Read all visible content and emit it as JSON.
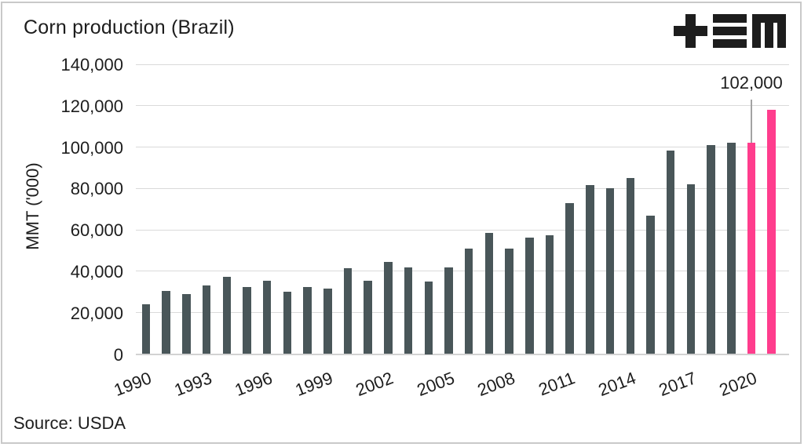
{
  "header": {
    "title": "Corn production (Brazil)"
  },
  "footer": {
    "source": "Source: USDA"
  },
  "logo": {
    "name": "tem-logo",
    "color": "#1d1d1d",
    "glyphs": [
      "plus",
      "triple-bar",
      "m"
    ]
  },
  "chart_data": {
    "type": "bar",
    "title": "Corn production (Brazil)",
    "xlabel": "",
    "ylabel": "MMT ('000)",
    "x": [
      1990,
      1991,
      1992,
      1993,
      1994,
      1995,
      1996,
      1997,
      1998,
      1999,
      2000,
      2001,
      2002,
      2003,
      2004,
      2005,
      2006,
      2007,
      2008,
      2009,
      2010,
      2011,
      2012,
      2013,
      2014,
      2015,
      2016,
      2017,
      2018,
      2019,
      2020,
      2021
    ],
    "values": [
      24000,
      30500,
      29000,
      33000,
      37400,
      32400,
      35600,
      30000,
      32300,
      31600,
      41500,
      35300,
      44400,
      42000,
      35000,
      41700,
      51000,
      58600,
      51000,
      56100,
      57400,
      73000,
      81500,
      80000,
      85000,
      67000,
      98500,
      82000,
      101000,
      102000,
      102000,
      118000
    ],
    "highlight_years": [
      2020,
      2021
    ],
    "annotation": {
      "label": "102,000",
      "year": 2020
    },
    "ylim": [
      0,
      140000
    ],
    "ytick_values": [
      0,
      20000,
      40000,
      60000,
      80000,
      100000,
      120000,
      140000
    ],
    "ytick_labels": [
      "0",
      "20,000",
      "40,000",
      "60,000",
      "80,000",
      "100,000",
      "120,000",
      "140,000"
    ],
    "xtick_labels": [
      "1990",
      "1993",
      "1996",
      "1999",
      "2002",
      "2005",
      "2008",
      "2011",
      "2014",
      "2017",
      "2020"
    ],
    "grid": "horizontal",
    "legend": "none",
    "colors": {
      "bar": "#495659",
      "highlight": "#ff3d8d",
      "gridline": "#dadada",
      "baseline": "#d2d2d2",
      "annotation_line": "#a3a3a3",
      "text": "#1d1d1d"
    }
  }
}
